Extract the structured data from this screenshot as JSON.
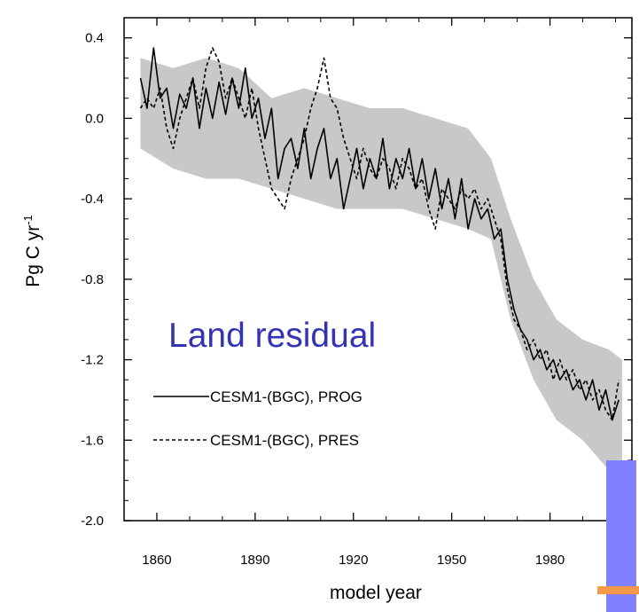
{
  "colors": {
    "band": "#c8c8c8",
    "series_prog": "#000000",
    "series_pres": "#000000",
    "annotation": "#3333b3",
    "overlay_blue": "#8080ff",
    "overlay_orange": "#f59a4b"
  },
  "chart_data": {
    "type": "line",
    "xlabel": "model year",
    "ylabel": "Pg C yr",
    "ylabel_superscript": "-1",
    "xlim": [
      1850,
      2005
    ],
    "ylim": [
      -2.0,
      0.5
    ],
    "xticks": [
      1860,
      1890,
      1920,
      1950,
      1980
    ],
    "xtick_labels": [
      "1860",
      "1890",
      "1920",
      "1950",
      "1980"
    ],
    "yticks": [
      0.4,
      0.0,
      -0.4,
      -0.8,
      -1.2,
      -1.6,
      -2.0
    ],
    "ytick_labels": [
      "0.4",
      "0.0",
      "-0.4",
      "-0.8",
      "-1.2",
      "-1.6",
      "-2.0"
    ],
    "annotation": "Land residual",
    "legend_placement": "lower-left",
    "grid": false,
    "series": [
      {
        "name": "CESM1-(BGC), PROG",
        "style": "solid",
        "x": [
          1855,
          1857,
          1859,
          1861,
          1863,
          1865,
          1867,
          1869,
          1871,
          1873,
          1875,
          1877,
          1879,
          1881,
          1883,
          1885,
          1887,
          1889,
          1891,
          1893,
          1895,
          1897,
          1899,
          1901,
          1903,
          1905,
          1907,
          1909,
          1911,
          1913,
          1915,
          1917,
          1919,
          1921,
          1923,
          1925,
          1927,
          1929,
          1931,
          1933,
          1935,
          1937,
          1939,
          1941,
          1943,
          1945,
          1947,
          1949,
          1951,
          1953,
          1955,
          1957,
          1959,
          1961,
          1963,
          1965,
          1967,
          1969,
          1971,
          1973,
          1975,
          1977,
          1979,
          1981,
          1983,
          1985,
          1987,
          1989,
          1991,
          1993,
          1995,
          1997,
          1999,
          2001
        ],
        "y": [
          0.2,
          0.05,
          0.35,
          0.1,
          0.15,
          -0.05,
          0.12,
          0.05,
          0.2,
          -0.05,
          0.15,
          0.0,
          0.18,
          0.02,
          0.2,
          0.05,
          0.25,
          0.0,
          0.1,
          -0.1,
          0.05,
          -0.3,
          -0.15,
          -0.1,
          -0.25,
          -0.05,
          -0.3,
          -0.15,
          -0.05,
          -0.3,
          -0.2,
          -0.45,
          -0.3,
          -0.15,
          -0.35,
          -0.2,
          -0.3,
          -0.1,
          -0.35,
          -0.2,
          -0.3,
          -0.15,
          -0.35,
          -0.2,
          -0.4,
          -0.25,
          -0.45,
          -0.3,
          -0.5,
          -0.3,
          -0.55,
          -0.4,
          -0.5,
          -0.45,
          -0.6,
          -0.55,
          -0.8,
          -0.95,
          -1.05,
          -1.1,
          -1.2,
          -1.15,
          -1.25,
          -1.2,
          -1.3,
          -1.25,
          -1.35,
          -1.3,
          -1.4,
          -1.3,
          -1.45,
          -1.35,
          -1.5,
          -1.4
        ]
      },
      {
        "name": "CESM1-(BGC), PRES",
        "style": "dashed",
        "x": [
          1855,
          1857,
          1859,
          1861,
          1863,
          1865,
          1867,
          1869,
          1871,
          1873,
          1875,
          1877,
          1879,
          1881,
          1883,
          1885,
          1887,
          1889,
          1891,
          1893,
          1895,
          1897,
          1899,
          1901,
          1903,
          1905,
          1907,
          1909,
          1911,
          1913,
          1915,
          1917,
          1919,
          1921,
          1923,
          1925,
          1927,
          1929,
          1931,
          1933,
          1935,
          1937,
          1939,
          1941,
          1943,
          1945,
          1947,
          1949,
          1951,
          1953,
          1955,
          1957,
          1959,
          1961,
          1963,
          1965,
          1967,
          1969,
          1971,
          1973,
          1975,
          1977,
          1979,
          1981,
          1983,
          1985,
          1987,
          1989,
          1991,
          1993,
          1995,
          1997,
          1999,
          2001
        ],
        "y": [
          0.05,
          0.1,
          0.05,
          0.15,
          -0.05,
          -0.15,
          0.0,
          0.1,
          0.2,
          0.05,
          0.25,
          0.35,
          0.28,
          0.1,
          0.2,
          0.1,
          0.0,
          0.15,
          -0.05,
          -0.2,
          -0.35,
          -0.4,
          -0.45,
          -0.3,
          -0.2,
          -0.1,
          0.05,
          0.15,
          0.3,
          0.1,
          0.05,
          -0.1,
          -0.2,
          -0.3,
          -0.15,
          -0.25,
          -0.3,
          -0.2,
          -0.25,
          -0.35,
          -0.2,
          -0.25,
          -0.35,
          -0.3,
          -0.45,
          -0.55,
          -0.35,
          -0.4,
          -0.45,
          -0.35,
          -0.4,
          -0.35,
          -0.45,
          -0.4,
          -0.5,
          -0.6,
          -0.85,
          -1.0,
          -1.05,
          -1.15,
          -1.1,
          -1.2,
          -1.15,
          -1.3,
          -1.2,
          -1.3,
          -1.25,
          -1.35,
          -1.3,
          -1.4,
          -1.35,
          -1.45,
          -1.5,
          -1.3
        ]
      }
    ],
    "band": {
      "x": [
        1855,
        1865,
        1875,
        1885,
        1895,
        1905,
        1915,
        1925,
        1935,
        1945,
        1955,
        1962,
        1968,
        1975,
        1982,
        1990,
        1998,
        2002
      ],
      "upper": [
        0.3,
        0.25,
        0.3,
        0.25,
        0.1,
        0.15,
        0.1,
        0.05,
        0.05,
        0.0,
        -0.05,
        -0.2,
        -0.5,
        -0.8,
        -1.0,
        -1.1,
        -1.15,
        -1.2
      ],
      "lower": [
        -0.15,
        -0.25,
        -0.3,
        -0.3,
        -0.35,
        -0.4,
        -0.45,
        -0.45,
        -0.45,
        -0.5,
        -0.55,
        -0.6,
        -1.0,
        -1.3,
        -1.5,
        -1.6,
        -1.75,
        -1.85
      ]
    }
  }
}
